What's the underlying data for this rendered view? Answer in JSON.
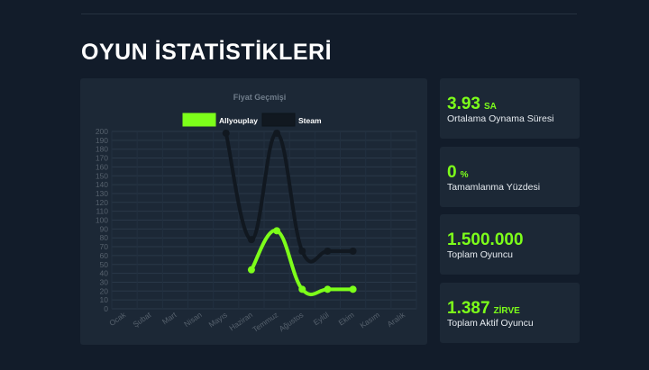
{
  "section_title": "OYUN İSTATİSTİKLERİ",
  "colors": {
    "accent": "#7dff1a",
    "steam": "#111820",
    "panel": "#1c2836",
    "background": "#121c2a"
  },
  "chart_data": {
    "type": "line",
    "title": "Fiyat Geçmişi",
    "categories": [
      "Ocak",
      "Şubat",
      "Mart",
      "Nisan",
      "Mayıs",
      "Haziran",
      "Temmuz",
      "Ağustos",
      "Eylül",
      "Ekim",
      "Kasım",
      "Aralık"
    ],
    "series": [
      {
        "name": "Allyouplay",
        "color": "#7dff1a",
        "values": [
          null,
          null,
          null,
          null,
          null,
          44,
          88,
          22,
          22,
          22,
          null,
          null
        ]
      },
      {
        "name": "Steam",
        "color": "#111820",
        "values": [
          null,
          null,
          null,
          null,
          198,
          78,
          198,
          65,
          65,
          65,
          null,
          null
        ]
      }
    ],
    "ylim": [
      0,
      200
    ],
    "yticks": [
      0,
      10,
      20,
      30,
      40,
      50,
      60,
      70,
      80,
      90,
      100,
      110,
      120,
      130,
      140,
      150,
      160,
      170,
      180,
      190,
      200
    ],
    "legend_position": "top",
    "grid": true
  },
  "stats": [
    {
      "value": "3.93",
      "unit": "SA",
      "label": "Ortalama Oynama Süresi"
    },
    {
      "value": "0",
      "unit": "%",
      "label": "Tamamlanma Yüzdesi"
    },
    {
      "value": "1.500.000",
      "unit": "",
      "label": "Toplam Oyuncu"
    },
    {
      "value": "1.387",
      "unit": "ZİRVE",
      "label": "Toplam Aktif Oyuncu"
    }
  ]
}
